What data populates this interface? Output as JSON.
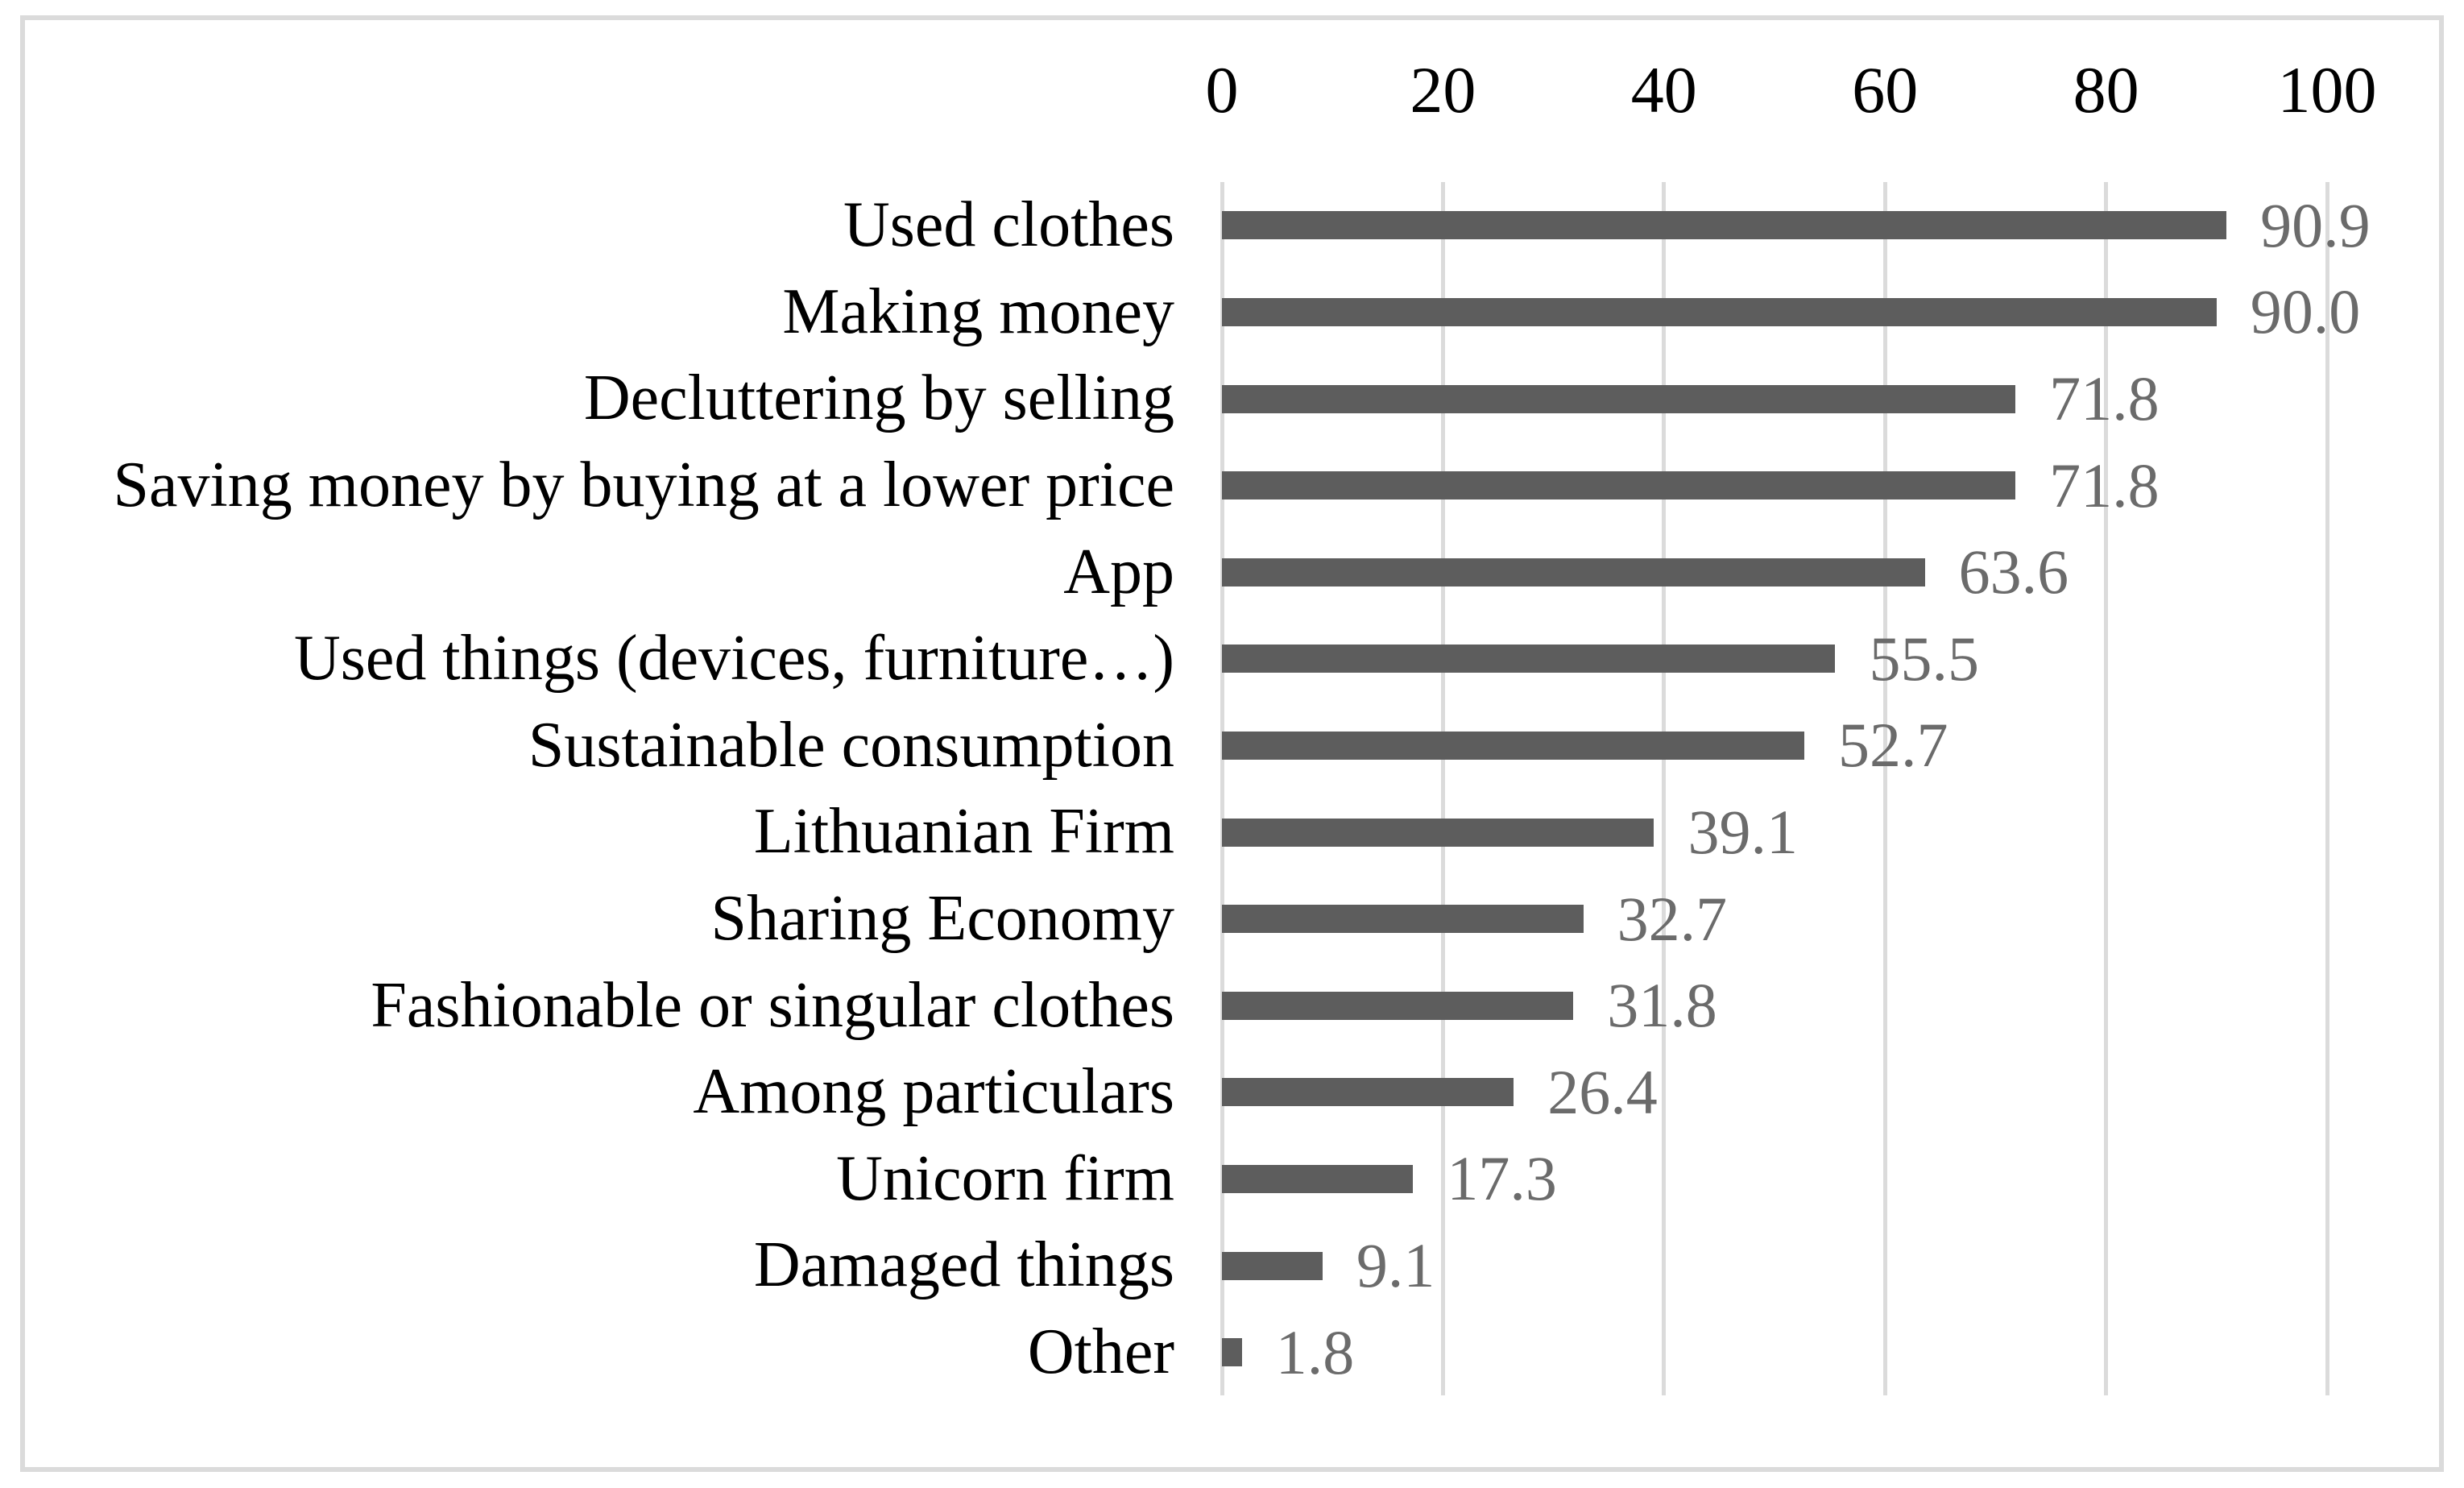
{
  "chart_data": {
    "type": "bar",
    "orientation": "horizontal",
    "title": "",
    "xlabel": "",
    "ylabel": "",
    "categories": [
      "Used clothes",
      "Making money",
      "Decluttering by selling",
      "Saving money by buying at a lower price",
      "App",
      "Used things (devices, furniture…)",
      "Sustainable consumption",
      "Lithuanian Firm",
      "Sharing Economy",
      "Fashionable or singular clothes",
      "Among particulars",
      "Unicorn firm",
      "Damaged things",
      "Other"
    ],
    "values": [
      90.9,
      90.0,
      71.8,
      71.8,
      63.6,
      55.5,
      52.7,
      39.1,
      32.7,
      31.8,
      26.4,
      17.3,
      9.1,
      1.8
    ],
    "value_labels": [
      "90.9",
      "90.0",
      "71.8",
      "71.8",
      "63.6",
      "55.5",
      "52.7",
      "39.1",
      "32.7",
      "31.8",
      "26.4",
      "17.3",
      "9.1",
      "1.8"
    ],
    "x_ticks": [
      0,
      20,
      40,
      60,
      80,
      100
    ],
    "x_tick_labels": [
      "0",
      "20",
      "40",
      "60",
      "80",
      "100"
    ],
    "xlim": [
      0,
      100
    ],
    "axis_position": "top",
    "grid": "vertical",
    "legend": "none",
    "colors": {
      "bar": "#5d5d5d",
      "value_label": "#6b6b6b",
      "gridline": "#dbdbdb",
      "chart_border": "#dbdbdb",
      "axis_text": "#000000",
      "background": "#ffffff"
    }
  }
}
